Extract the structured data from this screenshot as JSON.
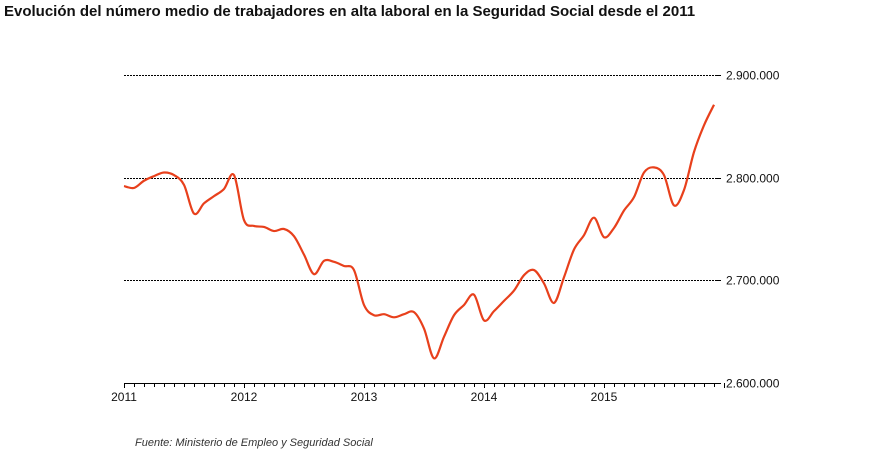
{
  "chart_data": {
    "type": "line",
    "title": "Evolución del número medio de trabajadores en alta laboral en la Seguridad Social desde el 2011",
    "source": "Fuente: Ministerio de Empleo y Seguridad Social",
    "xlabel": "",
    "ylabel": "",
    "x_start": "2011-01",
    "x_frequency": "monthly",
    "x_tick_labels": [
      "2011",
      "2012",
      "2013",
      "2014",
      "2015"
    ],
    "y_tick_labels": [
      "2.600.000",
      "2.700.000",
      "2.800.000",
      "2.900.000"
    ],
    "y_ticks": [
      2600000,
      2700000,
      2800000,
      2900000
    ],
    "ylim": [
      2600000,
      2900000
    ],
    "grid": "horizontal dashed",
    "y_axis_position": "right",
    "line_color": "#e8401c",
    "series": [
      {
        "values": [
          2791800,
          2790000,
          2797000,
          2801500,
          2805000,
          2802500,
          2793000,
          2765000,
          2775000,
          2782000,
          2789000,
          2802500,
          2758700,
          2753000,
          2752000,
          2748000,
          2750000,
          2743000,
          2725000,
          2706000,
          2719000,
          2718000,
          2714000,
          2710000,
          2676000,
          2666000,
          2667000,
          2664000,
          2667000,
          2669000,
          2653000,
          2624000,
          2645000,
          2666000,
          2676000,
          2686000,
          2661000,
          2670000,
          2680000,
          2690000,
          2705000,
          2710000,
          2697000,
          2678000,
          2703000,
          2730000,
          2744000,
          2761000,
          2742000,
          2751000,
          2768000,
          2781000,
          2805000,
          2810000,
          2802500,
          2773000,
          2788000,
          2825000,
          2851000,
          2871000
        ]
      }
    ]
  }
}
